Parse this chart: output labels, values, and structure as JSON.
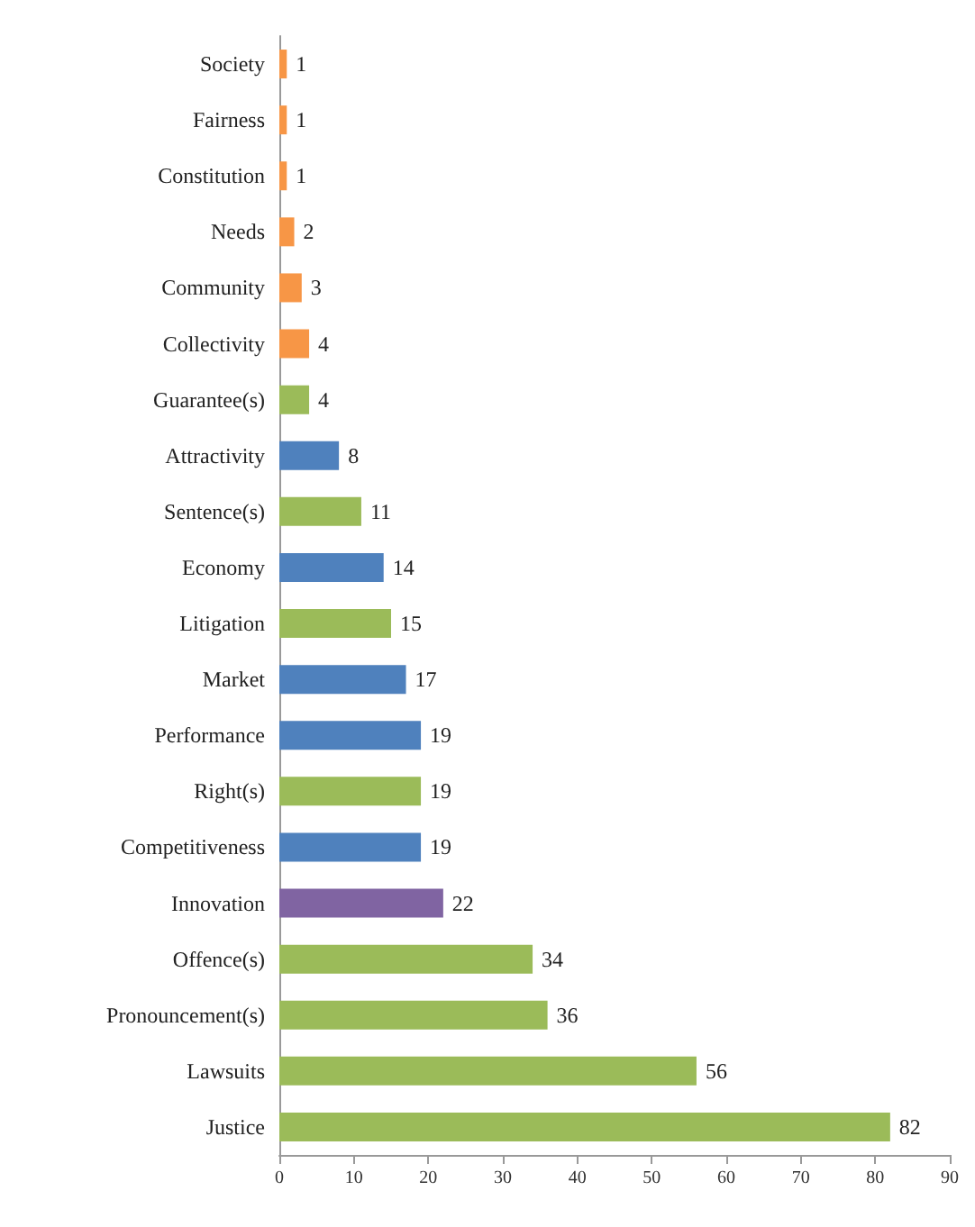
{
  "chart_data": {
    "type": "bar",
    "orientation": "horizontal",
    "categories": [
      "Society",
      "Fairness",
      "Constitution",
      "Needs",
      "Community",
      "Collectivity",
      "Guarantee(s)",
      "Attractivity",
      "Sentence(s)",
      "Economy",
      "Litigation",
      "Market",
      "Performance",
      "Right(s)",
      "Competitiveness",
      "Innovation",
      "Offence(s)",
      "Pronouncement(s)",
      "Lawsuits",
      "Justice"
    ],
    "values": [
      1,
      1,
      1,
      2,
      3,
      4,
      4,
      8,
      11,
      14,
      15,
      17,
      19,
      19,
      19,
      22,
      34,
      36,
      56,
      82
    ],
    "colors": [
      "#f79646",
      "#f79646",
      "#f79646",
      "#f79646",
      "#f79646",
      "#f79646",
      "#9bbb59",
      "#4f81bd",
      "#9bbb59",
      "#4f81bd",
      "#9bbb59",
      "#4f81bd",
      "#4f81bd",
      "#9bbb59",
      "#4f81bd",
      "#8064a2",
      "#9bbb59",
      "#9bbb59",
      "#9bbb59",
      "#9bbb59"
    ],
    "xlim": [
      0,
      90
    ],
    "xticks": [
      0,
      10,
      20,
      30,
      40,
      50,
      60,
      70,
      80,
      90
    ],
    "data_labels": true
  }
}
